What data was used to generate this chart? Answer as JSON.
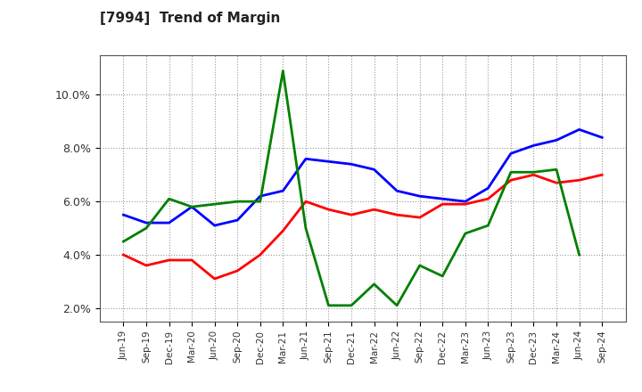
{
  "title": "[7994]  Trend of Margin",
  "x_labels": [
    "Jun-19",
    "Sep-19",
    "Dec-19",
    "Mar-20",
    "Jun-20",
    "Sep-20",
    "Dec-20",
    "Mar-21",
    "Jun-21",
    "Sep-21",
    "Dec-21",
    "Mar-22",
    "Jun-22",
    "Sep-22",
    "Dec-22",
    "Mar-23",
    "Jun-23",
    "Sep-23",
    "Dec-23",
    "Mar-24",
    "Jun-24",
    "Sep-24"
  ],
  "ordinary_income": [
    5.5,
    5.2,
    5.2,
    5.8,
    5.1,
    5.3,
    6.2,
    6.4,
    7.6,
    7.5,
    7.4,
    7.2,
    6.4,
    6.2,
    6.1,
    6.0,
    6.5,
    7.8,
    8.1,
    8.3,
    8.7,
    8.4
  ],
  "net_income": [
    4.0,
    3.6,
    3.8,
    3.8,
    3.1,
    3.4,
    4.0,
    4.9,
    6.0,
    5.7,
    5.5,
    5.7,
    5.5,
    5.4,
    5.9,
    5.9,
    6.1,
    6.8,
    7.0,
    6.7,
    6.8,
    7.0
  ],
  "operating_cashflow": [
    4.5,
    5.0,
    6.1,
    5.8,
    5.9,
    6.0,
    6.0,
    10.9,
    5.0,
    2.1,
    2.1,
    2.9,
    2.1,
    3.6,
    3.2,
    4.8,
    5.1,
    7.1,
    7.1,
    7.2,
    4.0,
    null
  ],
  "ordinary_income_color": "#0000FF",
  "net_income_color": "#FF0000",
  "operating_cashflow_color": "#008000",
  "ylim": [
    1.5,
    11.5
  ],
  "yticks": [
    2.0,
    4.0,
    6.0,
    8.0,
    10.0
  ],
  "ytick_labels": [
    "2.0%",
    "4.0%",
    "6.0%",
    "8.0%",
    "10.0%"
  ],
  "background_color": "#FFFFFF",
  "plot_bg_color": "#FFFFFF",
  "grid_color": "#AAAAAA",
  "line_width": 2.0
}
